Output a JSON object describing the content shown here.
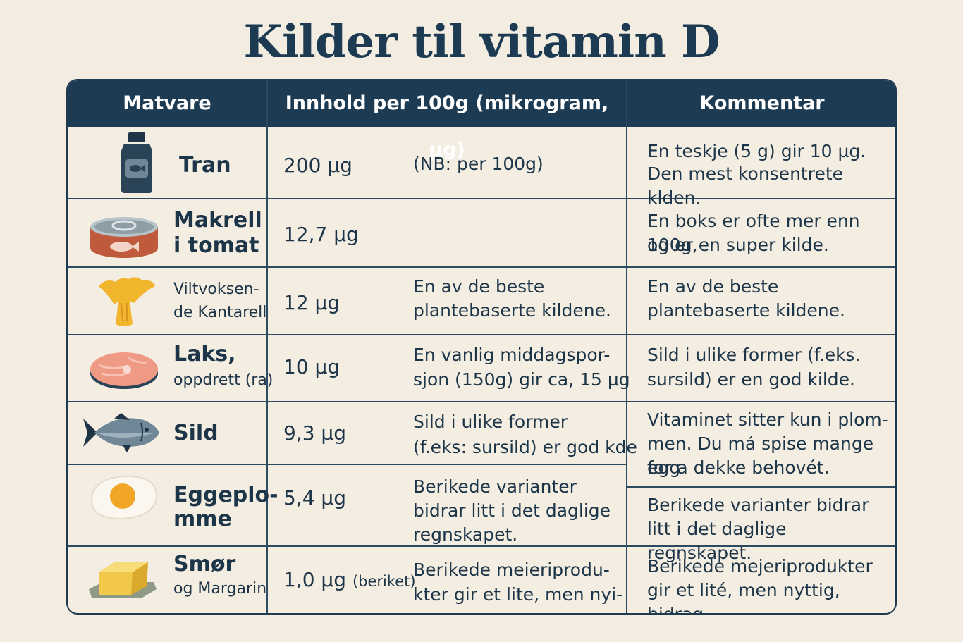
{
  "title": "Kilder til vitamin D",
  "headers": {
    "food": "Matvare",
    "content": "Innhold per 100g (mikrogram, µg)",
    "comment": "Kommentar"
  },
  "rows": [
    {
      "icon": "bottle-icon",
      "name_line1": "Tran",
      "name_line2": "",
      "amount": "200 µg",
      "amount_suffix": "",
      "note": [
        "(NB: per 100g)"
      ],
      "comment": [
        "En teskje (5 g) gir 10 µg.",
        "Den mest konsentrete klden."
      ]
    },
    {
      "icon": "tin-can-icon",
      "name_line1": "Makrell",
      "name_line2": "i tomat",
      "amount": "12,7 µg",
      "amount_suffix": "",
      "note": [],
      "comment": [
        "En boks er ofte mer enn 100g,",
        "og er en super kilde."
      ]
    },
    {
      "icon": "chanterelle-icon",
      "name_line1": "Viltvoksen-",
      "name_line2": "de Kantarell",
      "amount": "12 µg",
      "amount_suffix": "",
      "note": [
        "En av de beste",
        "plantebaserte kildene."
      ],
      "comment": [
        "En av de beste",
        "plantebaserte kildene."
      ]
    },
    {
      "icon": "salmon-steak-icon",
      "name_line1": "Laks,",
      "name_line2": "oppdrett (ra)",
      "amount": "10 µg",
      "amount_suffix": "",
      "note": [
        "En vanlig middagspor-",
        "sjon (150g) gir ca, 15 µg"
      ],
      "comment": [
        "Sild i ulike former (f.eks.",
        "sursild) er en god kilde."
      ]
    },
    {
      "icon": "herring-fish-icon",
      "name_line1": "Sild",
      "name_line2": "",
      "amount": "9,3 µg",
      "amount_suffix": "",
      "note": [
        "Sild i ulike former",
        "(f.eks: sursild) er god kde"
      ],
      "comment": [
        "Vitaminet sitter kun i plom-",
        "men. Du má spise mange egg",
        "for a dekke behovét."
      ]
    },
    {
      "icon": "egg-yolk-icon",
      "name_line1": "Eggeplo-",
      "name_line2": "mme",
      "amount": "5,4 µg",
      "amount_suffix": "",
      "note": [
        "Berikede varianter",
        "bidrar litt i det daglige",
        "regnskapet."
      ],
      "comment": [
        "Berikede varianter bidrar",
        "litt i det daglige regnskapet."
      ]
    },
    {
      "icon": "butter-icon",
      "name_line1": "Smør",
      "name_line2": "og Margarin",
      "amount": "1,0 µg",
      "amount_suffix": "(beriket)",
      "note": [
        "Berikede meieriprodu-",
        "kter gir et lite, men nyi-"
      ],
      "comment": [
        "Berikede mejeriprodukter",
        "gir et lité, men nyttig, bidrag."
      ]
    }
  ],
  "colors": {
    "background": "#f3ece0",
    "header": "#1d3b52",
    "text": "#1d3548"
  }
}
